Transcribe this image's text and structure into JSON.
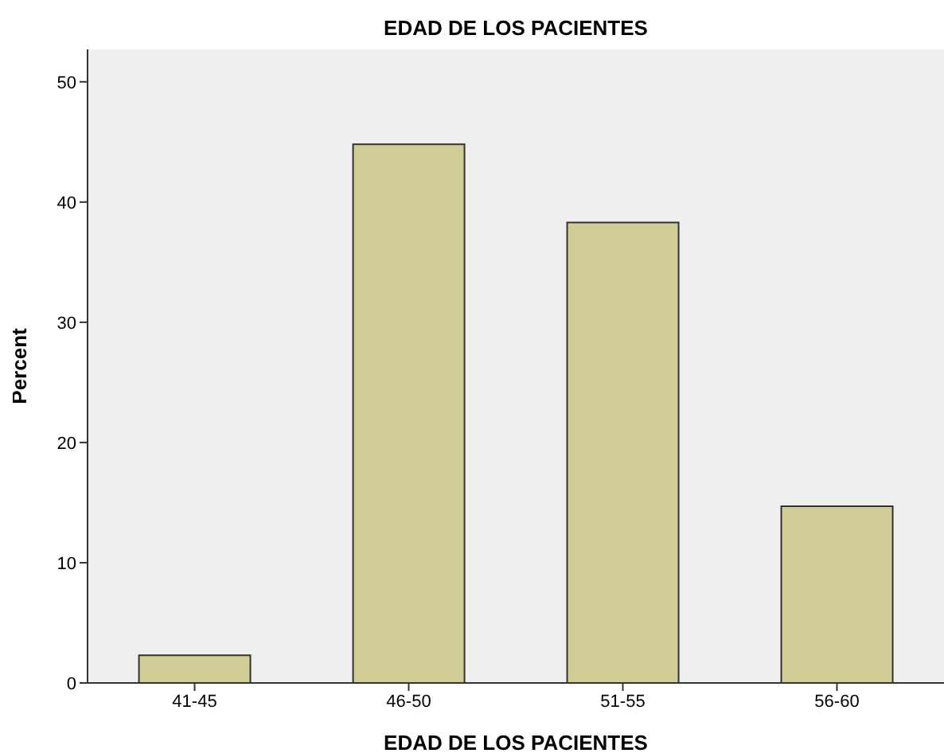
{
  "chart_data": {
    "type": "bar",
    "title": "EDAD DE LOS PACIENTES",
    "xlabel": "EDAD DE LOS PACIENTES",
    "ylabel": "Percent",
    "categories": [
      "41-45",
      "46-50",
      "51-55",
      "56-60"
    ],
    "values": [
      2.3,
      44.8,
      38.3,
      14.7
    ],
    "color": "#d2cd96",
    "ylim": [
      0,
      52.7
    ],
    "yticks": [
      0,
      10,
      20,
      30,
      40,
      50
    ],
    "grid": false
  }
}
